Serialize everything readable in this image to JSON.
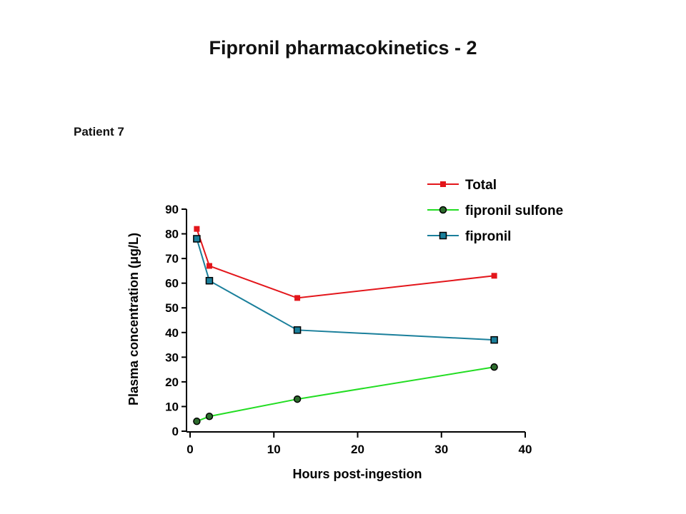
{
  "slide": {
    "title": "Fipronil pharmacokinetics - 2",
    "subtitle": "Patient 7"
  },
  "chart_data": {
    "type": "line",
    "xlabel": "Hours post-ingestion",
    "ylabel": "Plasma concentration (μg/L)",
    "xlim": [
      0,
      40
    ],
    "ylim": [
      0,
      90
    ],
    "x_ticks": [
      0,
      10,
      20,
      30,
      40
    ],
    "y_ticks": [
      0,
      10,
      20,
      30,
      40,
      50,
      60,
      70,
      80,
      90
    ],
    "grid": false,
    "legend_position": "top-right",
    "series": [
      {
        "name": "Total",
        "color": "#e3161b",
        "marker": "square",
        "x": [
          0.8,
          2.3,
          12.8,
          36.3
        ],
        "y": [
          82,
          67,
          54,
          63
        ]
      },
      {
        "name": "fipronil sulfone",
        "color": "#22dd22",
        "marker": "circle",
        "x": [
          0.8,
          2.3,
          12.8,
          36.3
        ],
        "y": [
          4,
          6,
          13,
          26
        ]
      },
      {
        "name": "fipronil",
        "color": "#1a7f9b",
        "marker": "square-outlined",
        "x": [
          0.8,
          2.3,
          12.8,
          36.3
        ],
        "y": [
          78,
          61,
          41,
          37
        ]
      }
    ]
  }
}
